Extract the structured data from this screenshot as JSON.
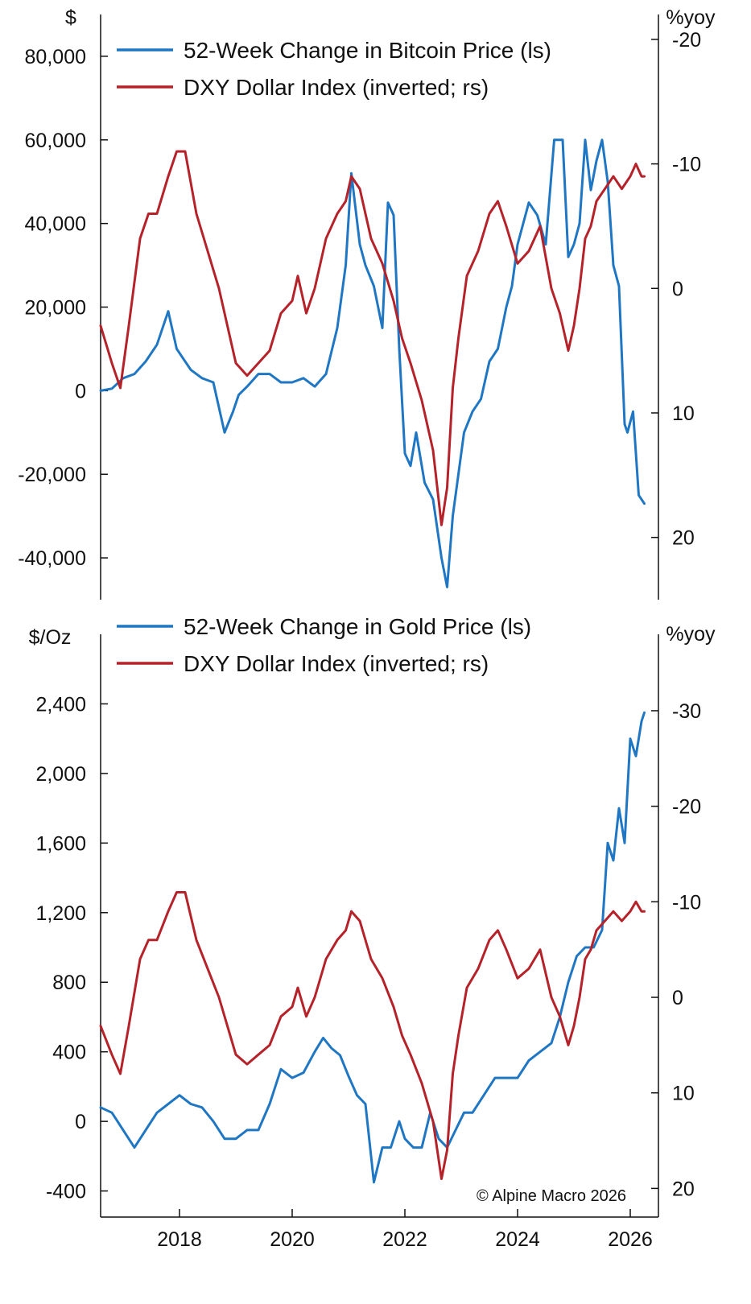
{
  "chart_data": [
    {
      "type": "line",
      "panel": "top",
      "left_unit": "$",
      "right_unit": "%yoy",
      "y_left": {
        "min": -50000,
        "max": 90000,
        "ticks": [
          80000,
          60000,
          40000,
          20000,
          0,
          -20000,
          -40000
        ],
        "tick_labels": [
          "80,000",
          "60,000",
          "40,000",
          "20,000",
          "0",
          "-20,000",
          "-40,000"
        ]
      },
      "y_right": {
        "inverted": true,
        "min": -22,
        "max": 25,
        "ticks": [
          -20,
          -10,
          0,
          10,
          20
        ],
        "tick_labels": [
          "-20",
          "-10",
          "0",
          "10",
          "20"
        ]
      },
      "legend": {
        "placement": "top-left"
      },
      "series": [
        {
          "name": "52-Week Change in Bitcoin Price (ls)",
          "axis": "left",
          "color": "#1f77c4",
          "x": [
            2016.6,
            2016.8,
            2017.0,
            2017.2,
            2017.4,
            2017.6,
            2017.8,
            2017.95,
            2018.05,
            2018.2,
            2018.4,
            2018.6,
            2018.8,
            2018.95,
            2019.05,
            2019.2,
            2019.4,
            2019.6,
            2019.8,
            2020.0,
            2020.2,
            2020.4,
            2020.6,
            2020.8,
            2020.95,
            2021.05,
            2021.2,
            2021.3,
            2021.45,
            2021.6,
            2021.7,
            2021.8,
            2021.9,
            2022.0,
            2022.1,
            2022.2,
            2022.35,
            2022.5,
            2022.65,
            2022.75,
            2022.85,
            2022.95,
            2023.05,
            2023.2,
            2023.35,
            2023.5,
            2023.65,
            2023.8,
            2023.9,
            2024.0,
            2024.1,
            2024.2,
            2024.35,
            2024.5,
            2024.65,
            2024.8,
            2024.9,
            2025.0,
            2025.1,
            2025.2,
            2025.3,
            2025.4,
            2025.5,
            2025.6,
            2025.7,
            2025.8,
            2025.9,
            2025.95,
            2026.05,
            2026.15,
            2026.25
          ],
          "values": [
            0,
            500,
            3000,
            4000,
            7000,
            11000,
            19000,
            10000,
            8000,
            5000,
            3000,
            2000,
            -10000,
            -5000,
            -1000,
            1000,
            4000,
            4000,
            2000,
            2000,
            3000,
            1000,
            4000,
            15000,
            30000,
            52000,
            35000,
            30000,
            25000,
            15000,
            45000,
            42000,
            10000,
            -15000,
            -18000,
            -10000,
            -22000,
            -26000,
            -40000,
            -47000,
            -30000,
            -20000,
            -10000,
            -5000,
            -2000,
            7000,
            10000,
            20000,
            25000,
            35000,
            40000,
            45000,
            42000,
            35000,
            60000,
            60000,
            32000,
            35000,
            40000,
            60000,
            48000,
            55000,
            60000,
            50000,
            30000,
            25000,
            -8000,
            -10000,
            -5000,
            -25000,
            -27000
          ]
        },
        {
          "name": "DXY Dollar Index (inverted; rs)",
          "axis": "right",
          "color": "#b5222a",
          "x": [
            2016.6,
            2016.8,
            2016.95,
            2017.1,
            2017.3,
            2017.45,
            2017.6,
            2017.8,
            2017.95,
            2018.1,
            2018.3,
            2018.5,
            2018.7,
            2018.85,
            2019.0,
            2019.2,
            2019.4,
            2019.6,
            2019.8,
            2020.0,
            2020.1,
            2020.25,
            2020.4,
            2020.6,
            2020.8,
            2020.95,
            2021.05,
            2021.2,
            2021.4,
            2021.6,
            2021.8,
            2021.95,
            2022.1,
            2022.3,
            2022.5,
            2022.65,
            2022.75,
            2022.85,
            2022.95,
            2023.1,
            2023.3,
            2023.5,
            2023.65,
            2023.8,
            2024.0,
            2024.2,
            2024.4,
            2024.6,
            2024.75,
            2024.9,
            2025.0,
            2025.1,
            2025.2,
            2025.3,
            2025.4,
            2025.55,
            2025.7,
            2025.85,
            2026.0,
            2026.1,
            2026.2,
            2026.25
          ],
          "values": [
            3,
            6,
            8,
            3,
            -4,
            -6,
            -6,
            -9,
            -11,
            -11,
            -6,
            -3,
            0,
            3,
            6,
            7,
            6,
            5,
            2,
            1,
            -1,
            2,
            0,
            -4,
            -6,
            -7,
            -9,
            -8,
            -4,
            -2,
            1,
            4,
            6,
            9,
            13,
            19,
            16,
            8,
            4,
            -1,
            -3,
            -6,
            -7,
            -5,
            -2,
            -3,
            -5,
            0,
            2,
            5,
            3,
            0,
            -4,
            -5,
            -7,
            -8,
            -9,
            -8,
            -9,
            -10,
            -9,
            -9
          ]
        }
      ]
    },
    {
      "type": "line",
      "panel": "bottom",
      "left_unit": "$/Oz",
      "right_unit": "%yoy",
      "y_left": {
        "min": -550,
        "max": 2800,
        "ticks": [
          2400,
          2000,
          1600,
          1200,
          800,
          400,
          0,
          -400
        ],
        "tick_labels": [
          "2,400",
          "2,000",
          "1,600",
          "1,200",
          "800",
          "400",
          "0",
          "-400"
        ]
      },
      "y_right": {
        "inverted": true,
        "min": -38,
        "max": 23,
        "ticks": [
          -30,
          -20,
          -10,
          0,
          10,
          20
        ],
        "tick_labels": [
          "-30",
          "-20",
          "-10",
          "0",
          "10",
          "20"
        ]
      },
      "legend": {
        "placement": "top-left"
      },
      "x_axis": {
        "min": 2016.6,
        "max": 2026.5,
        "ticks": [
          2018,
          2020,
          2022,
          2024,
          2026
        ],
        "tick_labels": [
          "2018",
          "2020",
          "2022",
          "2024",
          "2026"
        ]
      },
      "annotation": "© Alpine Macro 2026",
      "series": [
        {
          "name": "52-Week Change in Gold Price (ls)",
          "axis": "left",
          "color": "#1f77c4",
          "x": [
            2016.6,
            2016.8,
            2017.0,
            2017.2,
            2017.4,
            2017.6,
            2017.8,
            2018.0,
            2018.2,
            2018.4,
            2018.6,
            2018.8,
            2019.0,
            2019.2,
            2019.4,
            2019.6,
            2019.8,
            2020.0,
            2020.2,
            2020.4,
            2020.55,
            2020.7,
            2020.85,
            2021.0,
            2021.15,
            2021.3,
            2021.45,
            2021.6,
            2021.75,
            2021.9,
            2022.0,
            2022.15,
            2022.3,
            2022.45,
            2022.6,
            2022.75,
            2022.9,
            2023.05,
            2023.2,
            2023.4,
            2023.6,
            2023.8,
            2024.0,
            2024.2,
            2024.4,
            2024.6,
            2024.75,
            2024.9,
            2025.05,
            2025.2,
            2025.35,
            2025.5,
            2025.6,
            2025.7,
            2025.8,
            2025.9,
            2026.0,
            2026.1,
            2026.2,
            2026.25
          ],
          "values": [
            80,
            50,
            -50,
            -150,
            -50,
            50,
            100,
            150,
            100,
            80,
            0,
            -100,
            -100,
            -50,
            -50,
            100,
            300,
            250,
            280,
            400,
            480,
            420,
            380,
            260,
            150,
            100,
            -350,
            -150,
            -150,
            0,
            -100,
            -150,
            -150,
            50,
            -100,
            -150,
            -50,
            50,
            50,
            150,
            250,
            250,
            250,
            350,
            400,
            450,
            600,
            800,
            950,
            1000,
            1000,
            1100,
            1600,
            1500,
            1800,
            1600,
            2200,
            2100,
            2300,
            2350
          ]
        },
        {
          "name": "DXY Dollar Index (inverted; rs)",
          "axis": "right",
          "color": "#b5222a",
          "x": [
            2016.6,
            2016.8,
            2016.95,
            2017.1,
            2017.3,
            2017.45,
            2017.6,
            2017.8,
            2017.95,
            2018.1,
            2018.3,
            2018.5,
            2018.7,
            2018.85,
            2019.0,
            2019.2,
            2019.4,
            2019.6,
            2019.8,
            2020.0,
            2020.1,
            2020.25,
            2020.4,
            2020.6,
            2020.8,
            2020.95,
            2021.05,
            2021.2,
            2021.4,
            2021.6,
            2021.8,
            2021.95,
            2022.1,
            2022.3,
            2022.5,
            2022.65,
            2022.75,
            2022.85,
            2022.95,
            2023.1,
            2023.3,
            2023.5,
            2023.65,
            2023.8,
            2024.0,
            2024.2,
            2024.4,
            2024.6,
            2024.75,
            2024.9,
            2025.0,
            2025.1,
            2025.2,
            2025.3,
            2025.4,
            2025.55,
            2025.7,
            2025.85,
            2026.0,
            2026.1,
            2026.2,
            2026.25
          ],
          "values": [
            3,
            6,
            8,
            3,
            -4,
            -6,
            -6,
            -9,
            -11,
            -11,
            -6,
            -3,
            0,
            3,
            6,
            7,
            6,
            5,
            2,
            1,
            -1,
            2,
            0,
            -4,
            -6,
            -7,
            -9,
            -8,
            -4,
            -2,
            1,
            4,
            6,
            9,
            13,
            19,
            16,
            8,
            4,
            -1,
            -3,
            -6,
            -7,
            -5,
            -2,
            -3,
            -5,
            0,
            2,
            5,
            3,
            0,
            -4,
            -5,
            -7,
            -8,
            -9,
            -8,
            -9,
            -10,
            -9,
            -9
          ]
        }
      ]
    }
  ]
}
